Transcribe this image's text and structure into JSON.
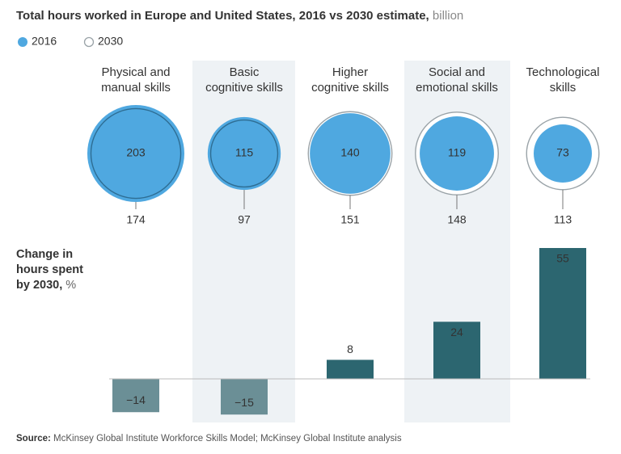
{
  "chart_data": [
    {
      "type": "bubble",
      "title": "Total hours worked in Europe and United States, 2016 vs 2030 estimate,",
      "title_unit": "billion",
      "categories": [
        [
          "Physical and",
          "manual skills"
        ],
        [
          "Basic",
          "cognitive skills"
        ],
        [
          "Higher",
          "cognitive skills"
        ],
        [
          "Social and",
          "emotional skills"
        ],
        [
          "Technological",
          "skills"
        ]
      ],
      "series": [
        {
          "name": "2016",
          "color": "#4fa8e0",
          "values": [
            203,
            115,
            140,
            119,
            73
          ]
        },
        {
          "name": "2030",
          "color": "#9aa3a8",
          "values": [
            174,
            97,
            151,
            148,
            113
          ]
        }
      ],
      "legend": "top-left"
    },
    {
      "type": "bar",
      "title": "Change in hours spent by 2030,",
      "title_unit": "%",
      "values": [
        -14,
        -15,
        8,
        24,
        55
      ],
      "value_labels": [
        "−14",
        "−15",
        "8",
        "24",
        "55"
      ],
      "color": "#2c6670"
    }
  ],
  "source": {
    "label": "Source:",
    "text": "McKinsey Global Institute Workforce Skills Model; McKinsey Global Institute analysis"
  }
}
